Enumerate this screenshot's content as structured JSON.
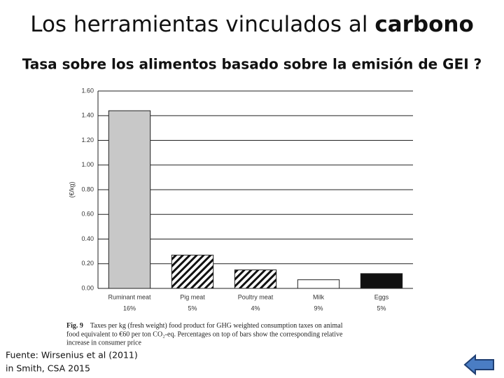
{
  "slide": {
    "title": "Los herramientas vinculados al",
    "title_bold": "carbono",
    "subtitle": "Tasa sobre los alimentos basado sobre la emisión de GEI ?",
    "source": [
      "Fuente:  Wirsenius et al (2011)",
      "in Smith, CSA 2015"
    ]
  },
  "chart_data": {
    "type": "bar",
    "ylabel": "(€/kg)",
    "categories": [
      "Ruminant meat",
      "Pig meat",
      "Poultry meat",
      "Milk",
      "Eggs"
    ],
    "values": [
      1.44,
      0.27,
      0.15,
      0.07,
      0.12
    ],
    "colors": [
      "#c8c8c8",
      "#ffffff",
      "#ffffff",
      "#ffffff",
      "#111111"
    ],
    "hatch": [
      false,
      true,
      true,
      false,
      false
    ],
    "percent_labels": [
      "16%",
      "5%",
      "4%",
      "9%",
      "5%"
    ],
    "ylim": [
      0,
      1.6
    ],
    "yticks": [
      {
        "value": 0,
        "label": "0.00"
      },
      {
        "value": 0.2,
        "label": "0.20"
      },
      {
        "value": 0.4,
        "label": "0.40"
      },
      {
        "value": 0.6,
        "label": "0.60"
      },
      {
        "value": 0.8,
        "label": "0.80"
      },
      {
        "value": 1.0,
        "label": "1.00"
      },
      {
        "value": 1.2,
        "label": "1.20"
      },
      {
        "value": 1.4,
        "label": "1.40"
      },
      {
        "value": 1.6,
        "label": "1.60"
      }
    ],
    "grid": true,
    "caption": {
      "fig": "Fig. 9",
      "lines": [
        "Taxes per kg (fresh weight) food product for GHG weighted consumption taxes on animal",
        "food equivalent to €60 per ton CO₂-eq. Percentages on top of bars show the corresponding relative",
        "increase in consumer price"
      ]
    }
  }
}
